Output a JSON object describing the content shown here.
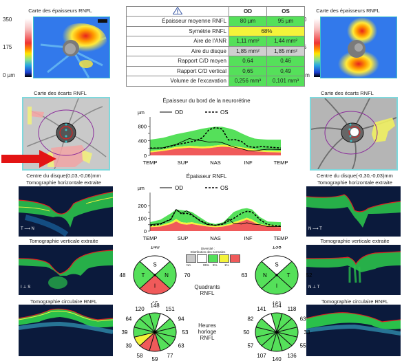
{
  "od_thickness_map": {
    "title": "Carte des épaisseurs RNFL",
    "scale_labels": [
      "350",
      "175",
      "0 µm"
    ]
  },
  "os_thickness_map": {
    "title": "Carte des épaisseurs RNFL",
    "scale_labels": [
      "350",
      "175",
      "0 µm"
    ]
  },
  "params_table": {
    "warning_icon": "warning-triangle-icon",
    "col_od": "OD",
    "col_os": "OS",
    "rows": [
      {
        "label": "Épaisseur moyenne RNFL",
        "od": "80 µm",
        "os": "95 µm",
        "od_status": "green",
        "os_status": "green"
      },
      {
        "label": "Symétrie RNFL",
        "merged": "68%",
        "status": "yellow"
      },
      {
        "label": "Aire de l'ANR",
        "od": "1,11 mm²",
        "os": "1,44 mm²",
        "od_status": "green",
        "os_status": "green"
      },
      {
        "label": "Aire du disque",
        "od": "1,85 mm²",
        "os": "1,85 mm²",
        "od_status": "gray",
        "os_status": "gray"
      },
      {
        "label": "Rapport C/D moyen",
        "od": "0,64",
        "os": "0,46",
        "od_status": "green",
        "os_status": "green"
      },
      {
        "label": "Rapport C/D vertical",
        "od": "0,65",
        "os": "0,49",
        "od_status": "green",
        "os_status": "green"
      },
      {
        "label": "Volume de l'excavation",
        "od": "0,256 mm³",
        "os": "0,101 mm³",
        "od_status": "green",
        "os_status": "green"
      }
    ]
  },
  "od_deviation_map": {
    "title": "Carte des écarts RNFL",
    "disc_center": "Centre du disque(0,03,-0,06)mm",
    "arrow_icon": "red-arrow-icon"
  },
  "os_deviation_map": {
    "title": "Carte des écarts RNFL",
    "disc_center": "Centre du disque(-0,30,-0,03)mm"
  },
  "scans": {
    "od_horizontal_title": "Tomographie horizontale extraite",
    "od_vertical_title": "Tomographie verticale extraite",
    "od_circular_title": "Tomographie circulaire RNFL",
    "os_horizontal_title": "Tomographie horizontale extraite",
    "os_vertical_title": "Tomographie verticale extraite",
    "os_circular_title": "Tomographie circulaire RNFL",
    "od_h_orient": [
      "T",
      "N"
    ],
    "od_v_orient": [
      "I",
      "S"
    ],
    "os_h_orient": [
      "N",
      "T"
    ],
    "os_v_orient": [
      "N",
      "T"
    ]
  },
  "legend_colors": {
    "green": "#55e05a",
    "yellow": "#f4f33a",
    "red": "#f05a5a",
    "gray": "#c8c8c8",
    "white": "#ffffff"
  },
  "chart_data": [
    {
      "type": "area",
      "title": "Épaisseur du bord de la neurorétine",
      "ylabel": "µm",
      "legend": [
        {
          "name": "OD",
          "style": "solid"
        },
        {
          "name": "OS",
          "style": "dashed"
        }
      ],
      "legend_position": "top",
      "categories": [
        "TEMP",
        "SUP",
        "NAS",
        "INF",
        "TEMP"
      ],
      "yticks": [
        "0",
        "400",
        "800"
      ],
      "ylim": [
        0,
        900
      ],
      "x": [
        0,
        0.1,
        0.2,
        0.3,
        0.35,
        0.4,
        0.45,
        0.5,
        0.55,
        0.6,
        0.65,
        0.7,
        0.75,
        0.8,
        0.85,
        0.9,
        1.0
      ],
      "normal_bands": {
        "red_upper": [
          80,
          120,
          180,
          210,
          200,
          190,
          200,
          220,
          240,
          230,
          200,
          170,
          140,
          110,
          100,
          90,
          80
        ],
        "yellow_upper": [
          120,
          160,
          230,
          260,
          250,
          240,
          250,
          270,
          290,
          280,
          250,
          220,
          190,
          160,
          140,
          130,
          120
        ],
        "green_upper": [
          430,
          480,
          580,
          650,
          690,
          730,
          760,
          780,
          780,
          740,
          690,
          600,
          520,
          460,
          440,
          430,
          430
        ]
      },
      "series": [
        {
          "name": "OD",
          "values": [
            190,
            210,
            300,
            460,
            420,
            400,
            360,
            370,
            350,
            280,
            220,
            180,
            130,
            120,
            150,
            170,
            160
          ]
        },
        {
          "name": "OS",
          "values": [
            200,
            200,
            290,
            360,
            400,
            480,
            700,
            760,
            720,
            420,
            430,
            380,
            240,
            220,
            240,
            230,
            200
          ]
        }
      ]
    },
    {
      "type": "area",
      "title": "Épaisseur RNFL",
      "ylabel": "µm",
      "legend": [
        {
          "name": "OD",
          "style": "solid"
        },
        {
          "name": "OS",
          "style": "dashed"
        }
      ],
      "legend_position": "top",
      "categories": [
        "TEMP",
        "SUP",
        "NAS",
        "INF",
        "TEMP"
      ],
      "yticks": [
        "0",
        "100",
        "200"
      ],
      "ylim": [
        0,
        260
      ],
      "x": [
        0,
        0.08,
        0.16,
        0.2,
        0.24,
        0.28,
        0.32,
        0.38,
        0.44,
        0.5,
        0.56,
        0.6,
        0.64,
        0.7,
        0.74,
        0.78,
        0.84,
        0.9,
        1.0
      ],
      "normal_bands": {
        "red_upper": [
          30,
          35,
          55,
          75,
          55,
          50,
          55,
          45,
          35,
          30,
          35,
          45,
          55,
          75,
          90,
          75,
          45,
          35,
          30
        ],
        "yellow_upper": [
          40,
          45,
          70,
          95,
          70,
          65,
          70,
          55,
          45,
          40,
          45,
          55,
          70,
          90,
          105,
          90,
          55,
          45,
          40
        ],
        "green_upper": [
          70,
          90,
          140,
          170,
          165,
          160,
          150,
          110,
          70,
          55,
          70,
          110,
          150,
          175,
          180,
          170,
          110,
          75,
          70
        ]
      },
      "series": [
        {
          "name": "OD",
          "values": [
            50,
            60,
            90,
            170,
            140,
            160,
            130,
            80,
            50,
            45,
            60,
            95,
            60,
            55,
            65,
            55,
            50,
            35,
            35
          ]
        },
        {
          "name": "OS",
          "values": [
            40,
            55,
            95,
            170,
            135,
            140,
            125,
            85,
            55,
            45,
            55,
            80,
            100,
            140,
            155,
            150,
            90,
            50,
            38
          ]
        }
      ]
    },
    {
      "type": "pie",
      "title": "Quadrants RNFL",
      "eye": "OD",
      "slices": [
        {
          "label": "S",
          "value": 140,
          "status": "white"
        },
        {
          "label": "N",
          "value": 70,
          "status": "green"
        },
        {
          "label": "I",
          "value": 65,
          "status": "red"
        },
        {
          "label": "T",
          "value": 48,
          "status": "green"
        }
      ]
    },
    {
      "type": "pie",
      "title": "Quadrants RNFL",
      "eye": "OS",
      "slices": [
        {
          "label": "S",
          "value": 138,
          "status": "white"
        },
        {
          "label": "T",
          "value": 52,
          "status": "green"
        },
        {
          "label": "I",
          "value": 128,
          "status": "green"
        },
        {
          "label": "N",
          "value": 63,
          "status": "green"
        }
      ]
    },
    {
      "type": "pie",
      "title": "Heures horloge RNFL",
      "eye": "OD",
      "clock_hours_clockwise_from_12": [
        {
          "value": 148,
          "status": "green"
        },
        {
          "value": 151,
          "status": "white"
        },
        {
          "value": 94,
          "status": "green"
        },
        {
          "value": 53,
          "status": "green"
        },
        {
          "value": 63,
          "status": "green"
        },
        {
          "value": 77,
          "status": "green"
        },
        {
          "value": 59,
          "status": "red"
        },
        {
          "value": 58,
          "status": "red"
        },
        {
          "value": 39,
          "status": "yellow"
        },
        {
          "value": 39,
          "status": "green"
        },
        {
          "value": 64,
          "status": "green"
        },
        {
          "value": 120,
          "status": "green"
        }
      ]
    },
    {
      "type": "pie",
      "title": "Heures horloge RNFL",
      "eye": "OS",
      "clock_hours_clockwise_from_12": [
        {
          "value": 154,
          "status": "green"
        },
        {
          "value": 118,
          "status": "green"
        },
        {
          "value": 63,
          "status": "green"
        },
        {
          "value": 38,
          "status": "green"
        },
        {
          "value": 55,
          "status": "green"
        },
        {
          "value": 136,
          "status": "green"
        },
        {
          "value": 140,
          "status": "green"
        },
        {
          "value": 107,
          "status": "green"
        },
        {
          "value": 57,
          "status": "green"
        },
        {
          "value": 50,
          "status": "green"
        },
        {
          "value": 82,
          "status": "green"
        },
        {
          "value": 141,
          "status": "white"
        }
      ]
    }
  ],
  "center_labels": {
    "quadrants": [
      "Quadrants",
      "RNFL"
    ],
    "clock": [
      "Heures",
      "horloge",
      "RNFL"
    ]
  },
  "normative_legend": {
    "title": [
      "Diversité :",
      "Distribution des normales"
    ],
    "labels": [
      "NA",
      "95%",
      "5%",
      "1%"
    ]
  }
}
